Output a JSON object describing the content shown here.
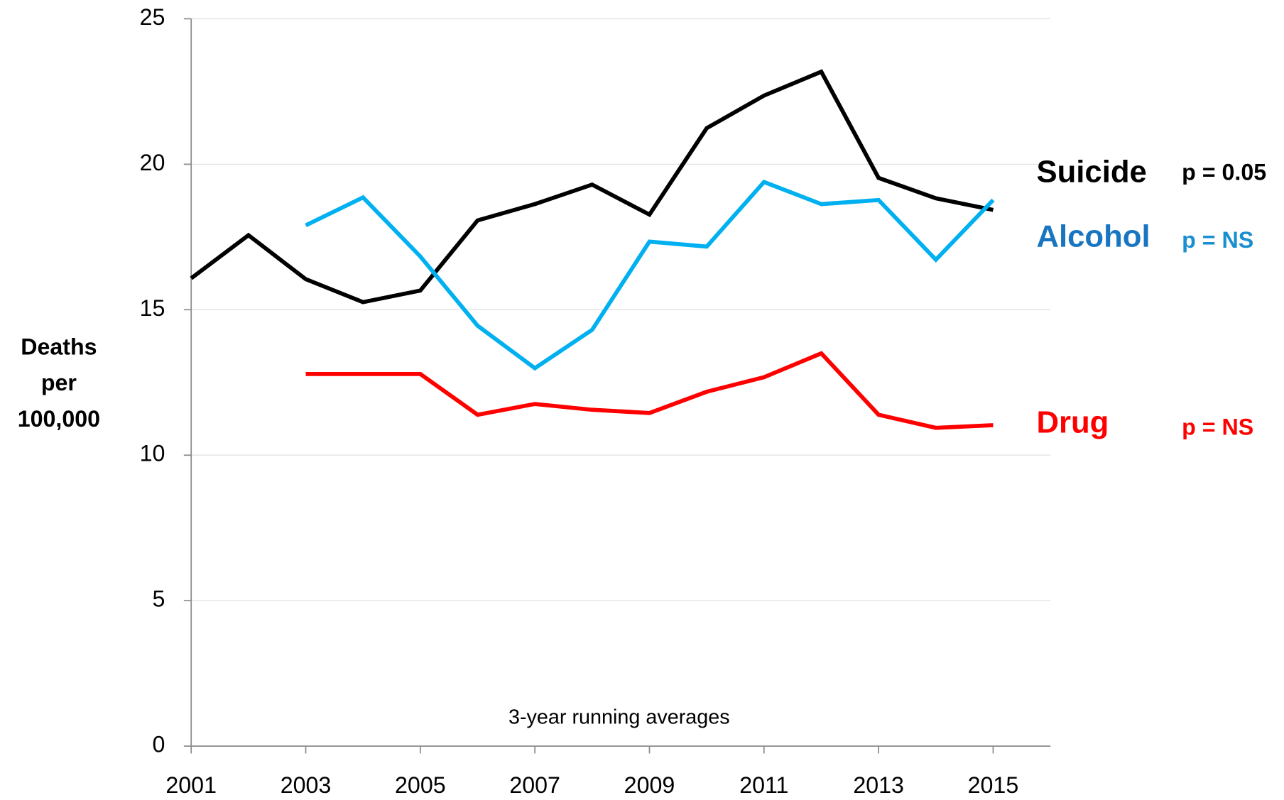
{
  "chart_data": {
    "type": "line",
    "ylabel": [
      "Deaths",
      "per",
      "100,000"
    ],
    "note": "3-year running averages",
    "x": [
      2001,
      2002,
      2003,
      2004,
      2005,
      2006,
      2007,
      2008,
      2009,
      2010,
      2011,
      2012,
      2013,
      2014,
      2015
    ],
    "xlim": [
      2001,
      2016
    ],
    "xticks": [
      2001,
      2003,
      2005,
      2007,
      2009,
      2011,
      2013,
      2015
    ],
    "ylim": [
      0,
      25
    ],
    "yticks": [
      0,
      5,
      10,
      15,
      20,
      25
    ],
    "grid": true,
    "series": [
      {
        "name": "Suicide",
        "color": "#000000",
        "label_color": "#000000",
        "p_label": "p = 0.05",
        "p_color": "#000000",
        "values": [
          16.08,
          17.56,
          16.05,
          15.26,
          15.66,
          18.07,
          18.63,
          19.3,
          18.27,
          21.24,
          22.36,
          23.18,
          19.53,
          18.83,
          18.43
        ]
      },
      {
        "name": "Alcohol",
        "color": "#00b0f0",
        "label_color": "#1a75c1",
        "p_label": "p = NS",
        "p_color": "#1a8fd0",
        "values": [
          null,
          null,
          17.9,
          18.86,
          16.83,
          14.45,
          12.99,
          14.31,
          17.34,
          17.17,
          19.39,
          18.63,
          18.77,
          16.72,
          18.77
        ]
      },
      {
        "name": "Drug",
        "color": "#ff0000",
        "label_color": "#ff0000",
        "p_label": "p = NS",
        "p_color": "#ff0000",
        "values": [
          null,
          null,
          12.79,
          12.79,
          12.79,
          11.39,
          11.76,
          11.56,
          11.45,
          12.18,
          12.68,
          13.5,
          11.39,
          10.94,
          11.03
        ]
      }
    ]
  }
}
